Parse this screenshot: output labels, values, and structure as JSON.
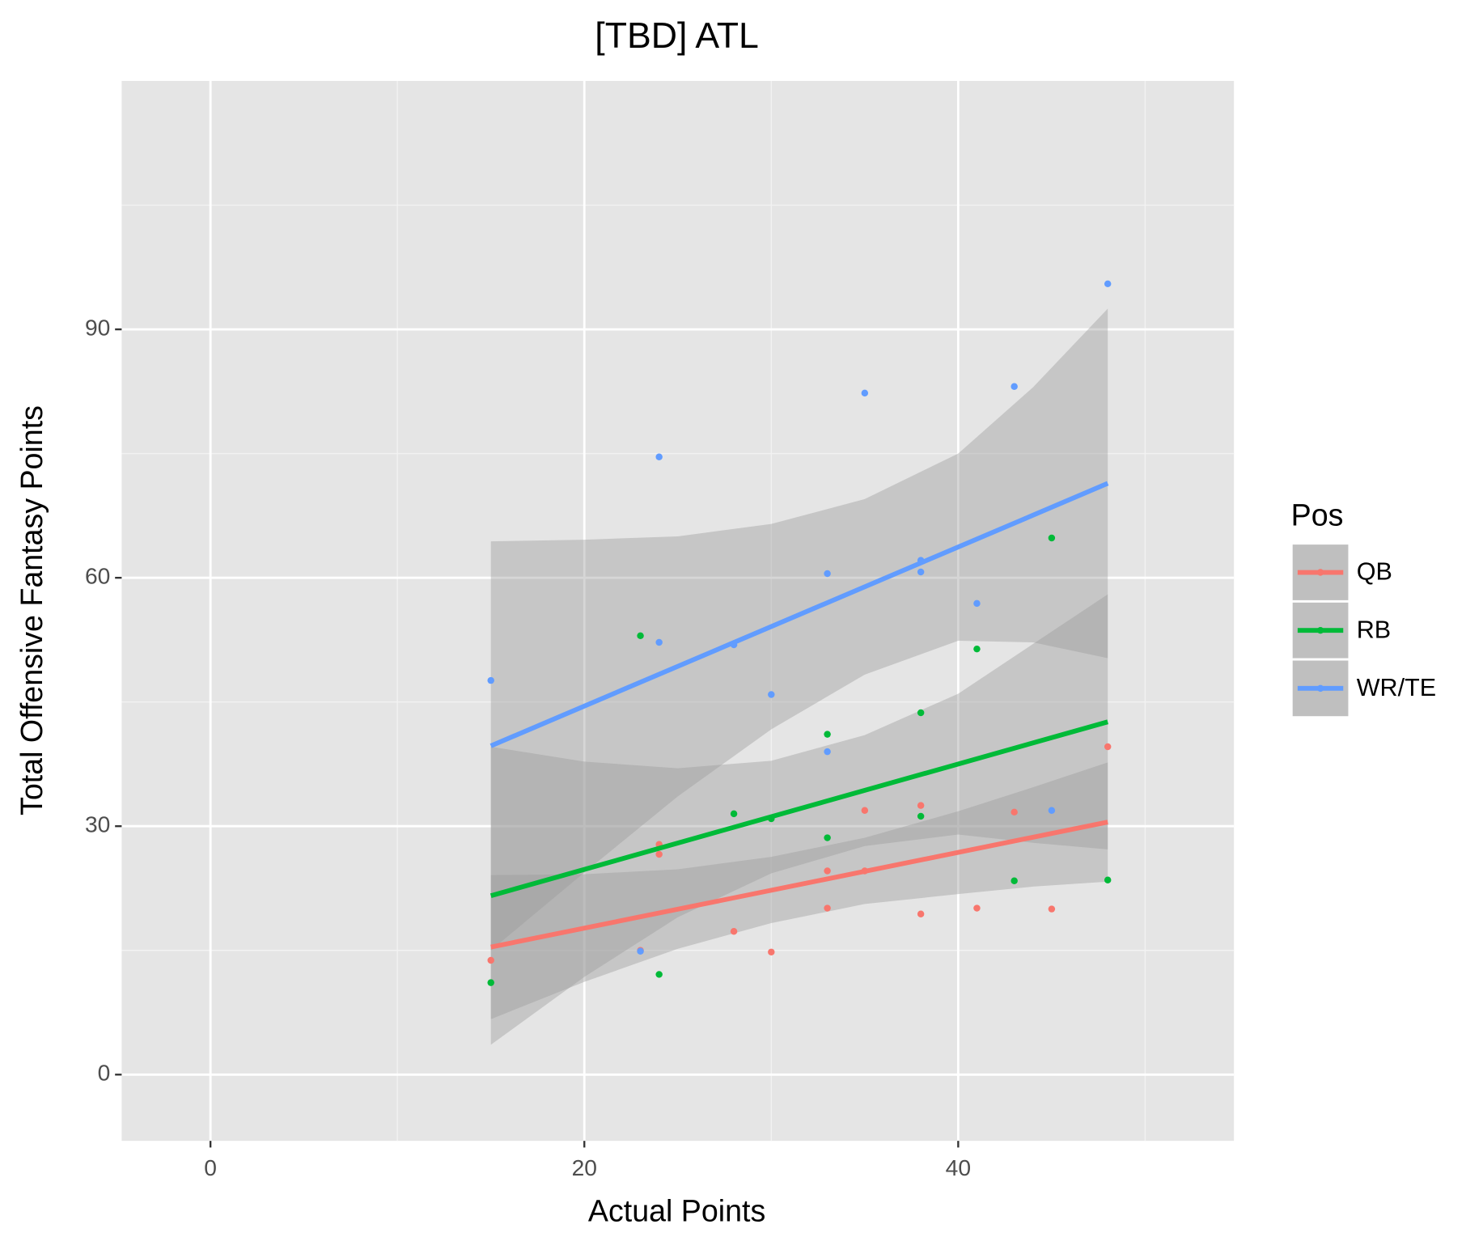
{
  "chart_data": {
    "type": "scatter",
    "title": "[TBD] ATL",
    "x_label": "Actual Points",
    "y_label": "Total Offensive Fantasy Points",
    "xlim": [
      -4.75,
      54.75
    ],
    "ylim": [
      -8,
      120
    ],
    "xticks": [
      0,
      20,
      40
    ],
    "yticks": [
      0,
      30,
      60,
      90
    ],
    "x_minor_ticks": [
      10,
      30,
      50
    ],
    "y_minor_ticks": [
      15,
      45,
      75,
      105
    ],
    "grid": true,
    "legend_title": "Pos",
    "legend_position": "right",
    "series": [
      {
        "name": "QB",
        "color": "#F8766D",
        "x": [
          15,
          23,
          24,
          24,
          28,
          30,
          33,
          33,
          35,
          35,
          38,
          38,
          41,
          43,
          45,
          48
        ],
        "values": [
          13.8,
          15.0,
          27.8,
          26.6,
          17.3,
          14.8,
          24.6,
          20.1,
          31.9,
          24.6,
          32.5,
          19.4,
          20.1,
          31.7,
          20.0,
          39.6
        ],
        "fit_x": [
          15,
          48
        ],
        "fit_y": [
          15.4,
          30.5
        ],
        "band_x": [
          15,
          20,
          25,
          30,
          35,
          40,
          44,
          48
        ],
        "band_lower": [
          6.7,
          11.2,
          15.2,
          18.3,
          20.6,
          21.8,
          22.7,
          23.3
        ],
        "band_upper": [
          24.1,
          24.2,
          24.8,
          26.3,
          28.6,
          31.8,
          34.7,
          37.7
        ]
      },
      {
        "name": "RB",
        "color": "#00BA38",
        "x": [
          15,
          23,
          24,
          28,
          30,
          33,
          33,
          38,
          38,
          41,
          43,
          45,
          48
        ],
        "values": [
          11.1,
          53.0,
          12.1,
          31.5,
          30.9,
          41.1,
          28.6,
          43.7,
          31.2,
          51.4,
          23.4,
          64.8,
          23.5
        ],
        "fit_x": [
          15,
          48
        ],
        "fit_y": [
          21.6,
          42.6
        ],
        "band_x": [
          15,
          20,
          25,
          30,
          35,
          40,
          44,
          48
        ],
        "band_lower": [
          3.6,
          11.8,
          19.0,
          24.3,
          27.6,
          29.0,
          28.0,
          27.2
        ],
        "band_upper": [
          39.6,
          37.8,
          37.0,
          37.9,
          41.0,
          46.0,
          52.0,
          58.0
        ]
      },
      {
        "name": "WR/TE",
        "color": "#619CFF",
        "x": [
          15,
          23,
          24,
          24,
          28,
          30,
          33,
          33,
          35,
          38,
          38,
          41,
          43,
          45,
          48
        ],
        "values": [
          47.6,
          14.9,
          74.6,
          52.2,
          51.9,
          45.9,
          60.5,
          39.0,
          82.3,
          62.1,
          60.7,
          56.9,
          83.1,
          31.9,
          95.5
        ],
        "fit_x": [
          15,
          48
        ],
        "fit_y": [
          39.7,
          71.4
        ],
        "band_x": [
          15,
          20,
          25,
          30,
          35,
          40,
          44,
          48
        ],
        "band_lower": [
          15.0,
          24.4,
          33.6,
          41.7,
          48.3,
          52.4,
          52.2,
          50.3
        ],
        "band_upper": [
          64.4,
          64.6,
          65.0,
          66.5,
          69.5,
          75.0,
          83.0,
          92.5
        ]
      }
    ]
  }
}
